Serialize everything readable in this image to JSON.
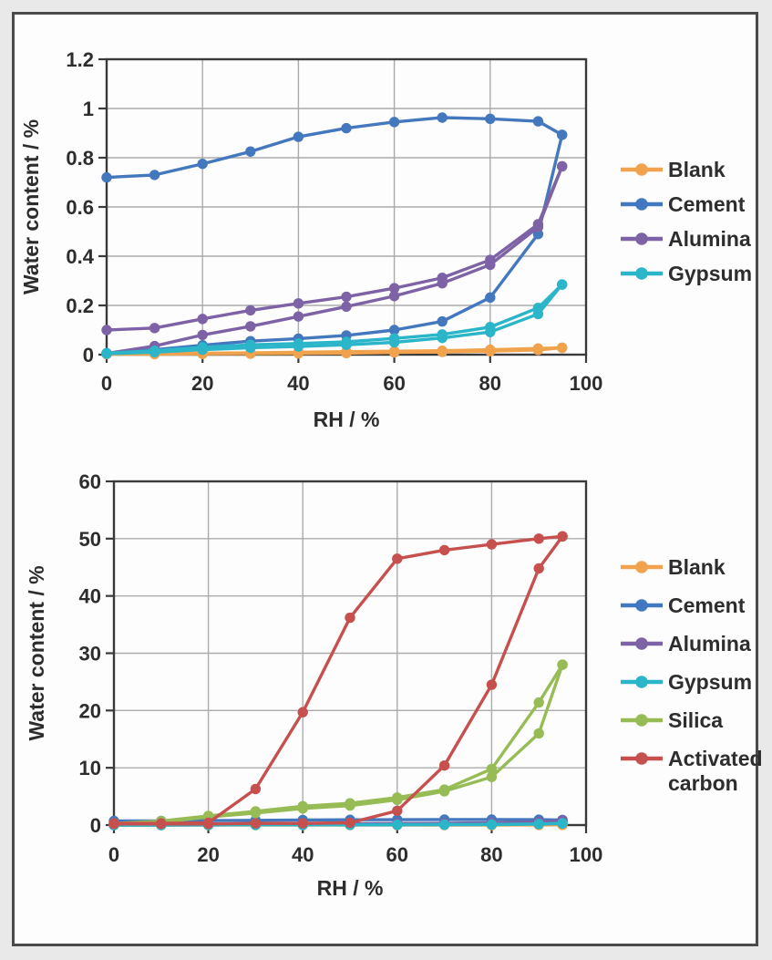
{
  "palette": {
    "background": "#E9E9E9",
    "panel": "#FDFDFD",
    "panel_border": "#4A4A4A",
    "axis": "#3A3A3A",
    "grid": "#ABABAB",
    "text": "#2D2D2D"
  },
  "chart_data": [
    {
      "type": "line",
      "title": "",
      "xlabel": "RH / %",
      "ylabel": "Water content / %",
      "xlim": [
        0,
        100
      ],
      "ylim": [
        0,
        1.2
      ],
      "xtick_values": [
        0,
        20,
        40,
        60,
        80,
        100
      ],
      "xtick_labels": [
        "0",
        "20",
        "40",
        "60",
        "80",
        "100"
      ],
      "ytick_values": [
        0,
        0.2,
        0.4,
        0.6,
        0.8,
        1,
        1.2
      ],
      "ytick_labels": [
        "0",
        "0.2",
        "0.4",
        "0.6",
        "0.8",
        "1",
        "1.2"
      ],
      "grid": true,
      "legend_position": "right",
      "x": [
        0,
        10,
        20,
        30,
        40,
        50,
        60,
        70,
        80,
        90,
        95
      ],
      "series": [
        {
          "name": "Blank",
          "color": "#F1A24D",
          "branches": {
            "desorption": [
              0.005,
              0.005,
              0.006,
              0.007,
              0.01,
              0.012,
              0.014,
              0.016,
              0.02,
              0.025,
              0.028
            ],
            "adsorption": [
              0.002,
              0.002,
              0.003,
              0.004,
              0.005,
              0.006,
              0.009,
              0.011,
              0.014,
              0.019,
              0.028
            ]
          }
        },
        {
          "name": "Cement",
          "color": "#4478BE",
          "branches": {
            "desorption": [
              0.72,
              0.73,
              0.775,
              0.825,
              0.885,
              0.92,
              0.945,
              0.963,
              0.958,
              0.948,
              0.893
            ],
            "adsorption": [
              0.005,
              0.02,
              0.038,
              0.055,
              0.065,
              0.078,
              0.1,
              0.135,
              0.232,
              0.49,
              0.893
            ]
          }
        },
        {
          "name": "Alumina",
          "color": "#7D63A5",
          "branches": {
            "desorption": [
              0.1,
              0.108,
              0.145,
              0.18,
              0.208,
              0.235,
              0.27,
              0.312,
              0.385,
              0.53,
              0.765
            ],
            "adsorption": [
              0.005,
              0.035,
              0.08,
              0.115,
              0.155,
              0.195,
              0.238,
              0.29,
              0.365,
              0.518,
              0.765
            ]
          }
        },
        {
          "name": "Gypsum",
          "color": "#2BB5C9",
          "branches": {
            "desorption": [
              0.006,
              0.016,
              0.03,
              0.04,
              0.045,
              0.052,
              0.066,
              0.082,
              0.112,
              0.19,
              0.285
            ],
            "adsorption": [
              0.004,
              0.01,
              0.02,
              0.028,
              0.033,
              0.04,
              0.05,
              0.068,
              0.092,
              0.165,
              0.285
            ]
          }
        }
      ]
    },
    {
      "type": "line",
      "title": "",
      "xlabel": "RH / %",
      "ylabel": "Water content / %",
      "xlim": [
        0,
        100
      ],
      "ylim": [
        0,
        60
      ],
      "xtick_values": [
        0,
        20,
        40,
        60,
        80,
        100
      ],
      "xtick_labels": [
        "0",
        "20",
        "40",
        "60",
        "80",
        "100"
      ],
      "ytick_values": [
        0,
        10,
        20,
        30,
        40,
        50,
        60
      ],
      "ytick_labels": [
        "0",
        "10",
        "20",
        "30",
        "40",
        "50",
        "60"
      ],
      "grid": true,
      "legend_position": "right",
      "x": [
        0,
        10,
        20,
        30,
        40,
        50,
        60,
        70,
        80,
        90,
        95
      ],
      "series": [
        {
          "name": "Blank",
          "color": "#F1A24D",
          "branches": {
            "desorption": [
              0.01,
              0.01,
              0.01,
              0.01,
              0.01,
              0.01,
              0.01,
              0.02,
              0.02,
              0.03,
              0.03
            ],
            "adsorption": [
              0.01,
              0.01,
              0.01,
              0.01,
              0.01,
              0.01,
              0.01,
              0.01,
              0.01,
              0.02,
              0.03
            ]
          }
        },
        {
          "name": "Cement",
          "color": "#4478BE",
          "branches": {
            "desorption": [
              0.72,
              0.73,
              0.78,
              0.83,
              0.89,
              0.92,
              0.95,
              0.96,
              0.96,
              0.95,
              0.89
            ],
            "adsorption": [
              0.01,
              0.02,
              0.04,
              0.06,
              0.07,
              0.08,
              0.1,
              0.14,
              0.23,
              0.49,
              0.89
            ]
          }
        },
        {
          "name": "Alumina",
          "color": "#7D63A5",
          "branches": {
            "desorption": [
              0.1,
              0.11,
              0.15,
              0.18,
              0.21,
              0.24,
              0.27,
              0.31,
              0.39,
              0.53,
              0.77
            ],
            "adsorption": [
              0.01,
              0.04,
              0.08,
              0.12,
              0.16,
              0.2,
              0.24,
              0.29,
              0.37,
              0.52,
              0.77
            ]
          }
        },
        {
          "name": "Gypsum",
          "color": "#2BB5C9",
          "branches": {
            "desorption": [
              0.01,
              0.02,
              0.03,
              0.04,
              0.05,
              0.05,
              0.07,
              0.08,
              0.11,
              0.19,
              0.29
            ],
            "adsorption": [
              0.01,
              0.01,
              0.02,
              0.03,
              0.03,
              0.04,
              0.05,
              0.07,
              0.09,
              0.17,
              0.29
            ]
          }
        },
        {
          "name": "Silica",
          "color": "#97BC55",
          "branches": {
            "desorption": [
              0.3,
              0.7,
              1.6,
              2.4,
              3.3,
              3.8,
              4.8,
              6.2,
              9.8,
              21.4,
              28.0
            ],
            "adsorption": [
              0.2,
              0.5,
              1.4,
              2.1,
              2.9,
              3.4,
              4.4,
              5.9,
              8.4,
              16.0,
              28.0
            ]
          }
        },
        {
          "name": "Activated carbon",
          "color": "#C6504E",
          "branches": {
            "desorption": [
              0.3,
              0.3,
              0.4,
              6.3,
              19.7,
              36.2,
              46.5,
              48.0,
              49.0,
              50.0,
              50.4
            ],
            "adsorption": [
              0.2,
              0.2,
              0.2,
              0.3,
              0.3,
              0.4,
              2.5,
              10.4,
              24.5,
              44.8,
              50.4
            ]
          }
        }
      ]
    }
  ]
}
